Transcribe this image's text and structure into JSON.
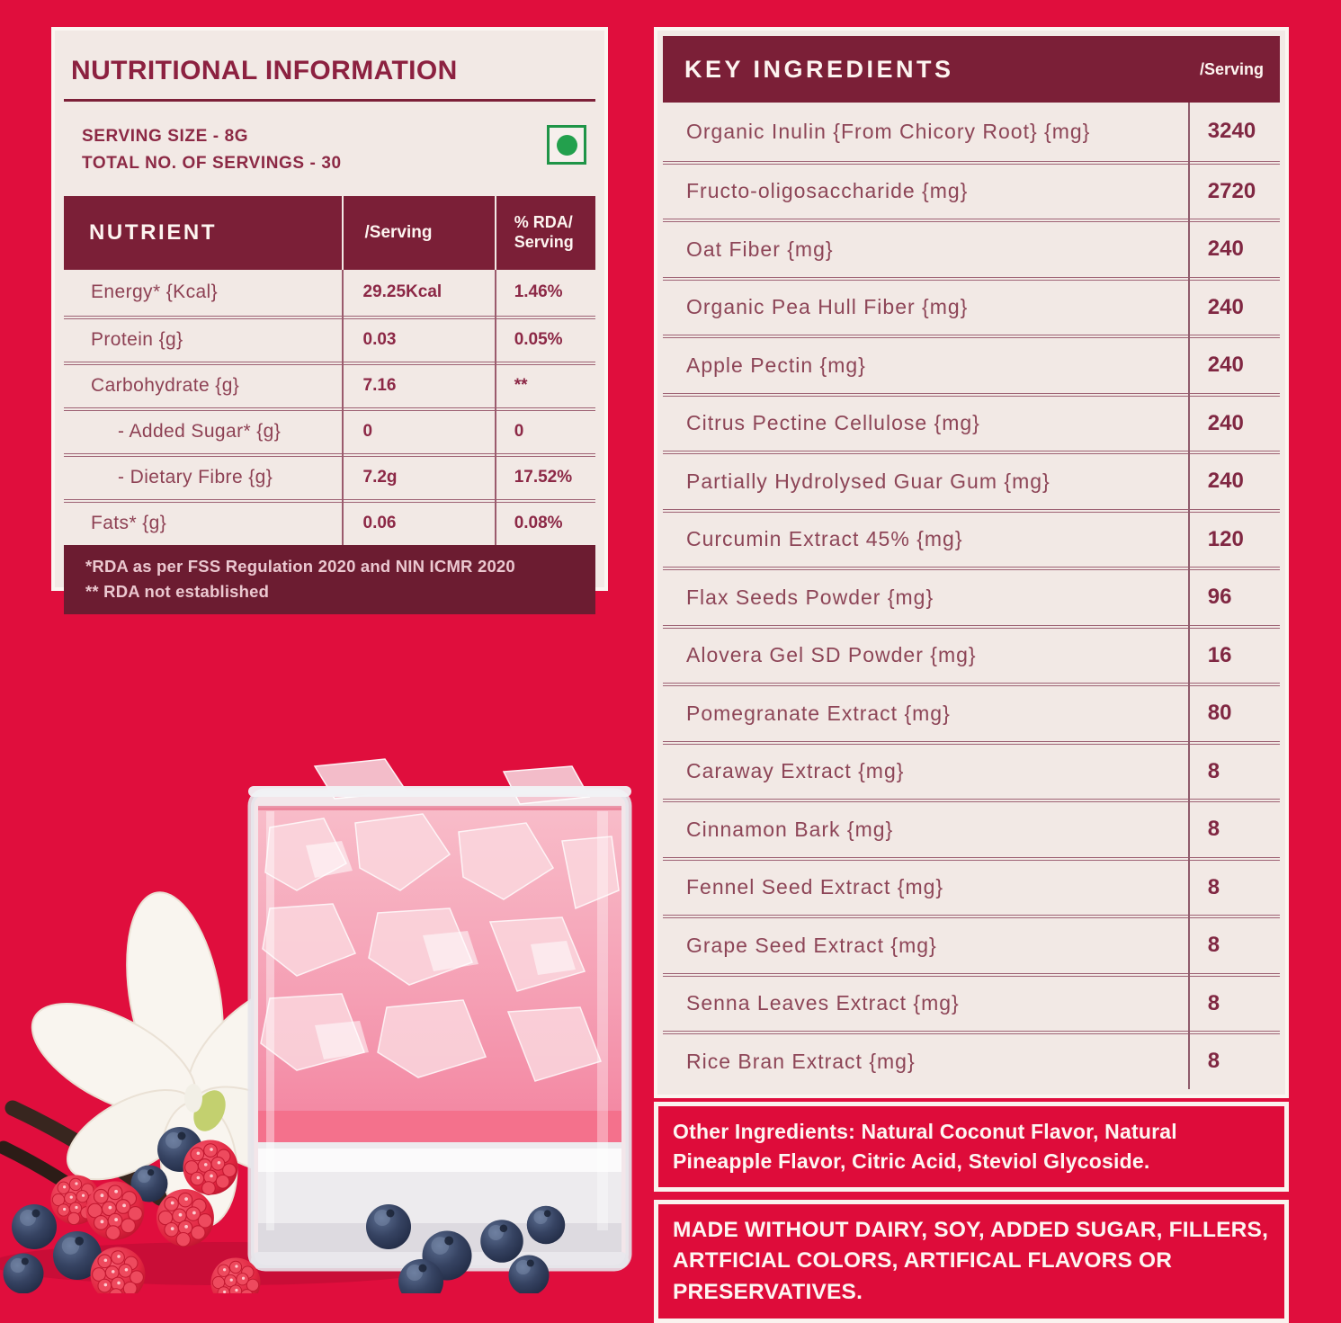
{
  "colors": {
    "page_background": "#e00e3d",
    "panel_cream": "#f2e9e5",
    "maroon_header": "#7b1f37",
    "maroon_footer": "#6c1c31",
    "title_text": "#8c2140",
    "row_label_text": "#8e4154",
    "value_text": "#8c2846",
    "veg_mark_green": "#23a04d",
    "white_text": "#fdf6f2"
  },
  "nutrition_panel": {
    "title": "NUTRITIONAL INFORMATION",
    "serving_size": "SERVING SIZE  - 8G",
    "total_servings": "TOTAL NO. OF SERVINGS - 30",
    "veg_mark": "vegetarian-mark",
    "table": {
      "headers": [
        "NUTRIENT",
        "/Serving",
        "% RDA/\nServing"
      ],
      "rows": [
        {
          "nutrient": "Energy* {Kcal}",
          "per_serving": "29.25Kcal",
          "rda": "1.46%",
          "indent": false
        },
        {
          "nutrient": "Protein {g}",
          "per_serving": "0.03",
          "rda": "0.05%",
          "indent": false
        },
        {
          "nutrient": "Carbohydrate {g}",
          "per_serving": "7.16",
          "rda": "**",
          "indent": false
        },
        {
          "nutrient": "- Added Sugar* {g}",
          "per_serving": "0",
          "rda": "0",
          "indent": true
        },
        {
          "nutrient": "- Dietary Fibre {g}",
          "per_serving": "7.2g",
          "rda": "17.52%",
          "indent": true
        },
        {
          "nutrient": "Fats* {g}",
          "per_serving": "0.06",
          "rda": "0.08%",
          "indent": false
        }
      ]
    },
    "footnotes": [
      "*RDA as per FSS Regulation 2020 and NIN ICMR 2020",
      "** RDA not established"
    ]
  },
  "ingredients_panel": {
    "title": "KEY INGREDIENTS",
    "per_serving_label": "/Serving",
    "rows": [
      {
        "name": "Organic Inulin {From Chicory Root} {mg}",
        "value": "3240"
      },
      {
        "name": "Fructo-oligosaccharide {mg}",
        "value": "2720"
      },
      {
        "name": "Oat Fiber {mg}",
        "value": "240"
      },
      {
        "name": "Organic Pea Hull Fiber {mg}",
        "value": "240"
      },
      {
        "name": "Apple Pectin {mg}",
        "value": "240"
      },
      {
        "name": "Citrus Pectine Cellulose {mg}",
        "value": "240"
      },
      {
        "name": "Partially Hydrolysed Guar Gum {mg}",
        "value": "240"
      },
      {
        "name": "Curcumin Extract 45% {mg}",
        "value": "120"
      },
      {
        "name": "Flax Seeds Powder {mg}",
        "value": "96"
      },
      {
        "name": "Alovera Gel SD Powder {mg}",
        "value": "16"
      },
      {
        "name": "Pomegranate Extract {mg}",
        "value": "80"
      },
      {
        "name": "Caraway Extract {mg}",
        "value": "8"
      },
      {
        "name": "Cinnamon Bark {mg}",
        "value": "8"
      },
      {
        "name": "Fennel Seed Extract {mg}",
        "value": "8"
      },
      {
        "name": "Grape Seed Extract {mg}",
        "value": "8"
      },
      {
        "name": "Senna Leaves Extract {mg}",
        "value": "8"
      },
      {
        "name": "Rice Bran Extract {mg}",
        "value": "8"
      }
    ],
    "other_ingredients": "Other Ingredients: Natural Coconut Flavor, Natural Pineapple Flavor, Citric Acid, Steviol Glycoside.",
    "made_without": "MADE WITHOUT DAIRY, SOY, ADDED SUGAR, FILLERS, ARTFICIAL COLORS, ARTIFICAL FLAVORS OR PRESERVATIVES."
  }
}
